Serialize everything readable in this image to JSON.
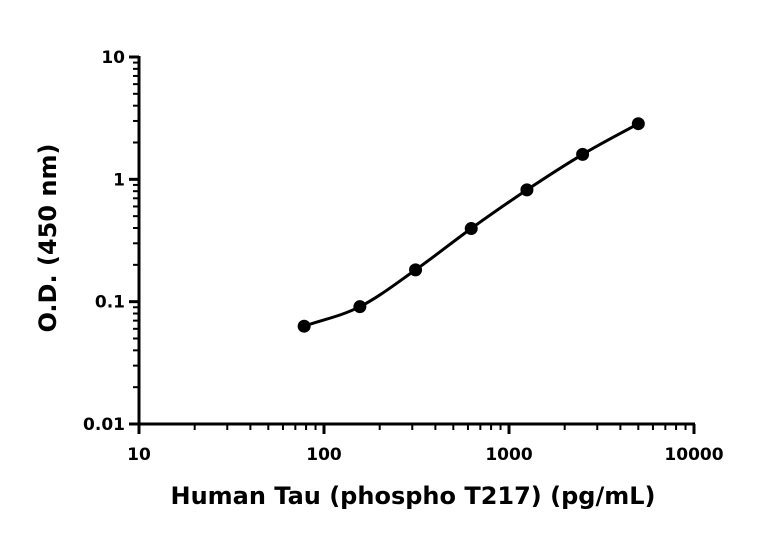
{
  "chart_data": {
    "type": "scatter",
    "title": "",
    "xlabel": "Human Tau (phospho T217) (pg/mL)",
    "ylabel": "O.D. (450 nm)",
    "x_scale": "log",
    "y_scale": "log",
    "xlim": [
      10,
      10000
    ],
    "ylim": [
      0.01,
      10
    ],
    "x_ticks": [
      "10",
      "100",
      "1000",
      "10000"
    ],
    "y_ticks": [
      "0.01",
      "0.1",
      "1",
      "10"
    ],
    "grid": false,
    "legend": "none",
    "series": [
      {
        "x": [
          78.1,
          156.3,
          312.5,
          625,
          1250,
          2500,
          5000
        ],
        "y": [
          0.063,
          0.091,
          0.182,
          0.396,
          0.82,
          1.6,
          2.85
        ],
        "fit_curve": true,
        "color": "#000000"
      }
    ]
  }
}
